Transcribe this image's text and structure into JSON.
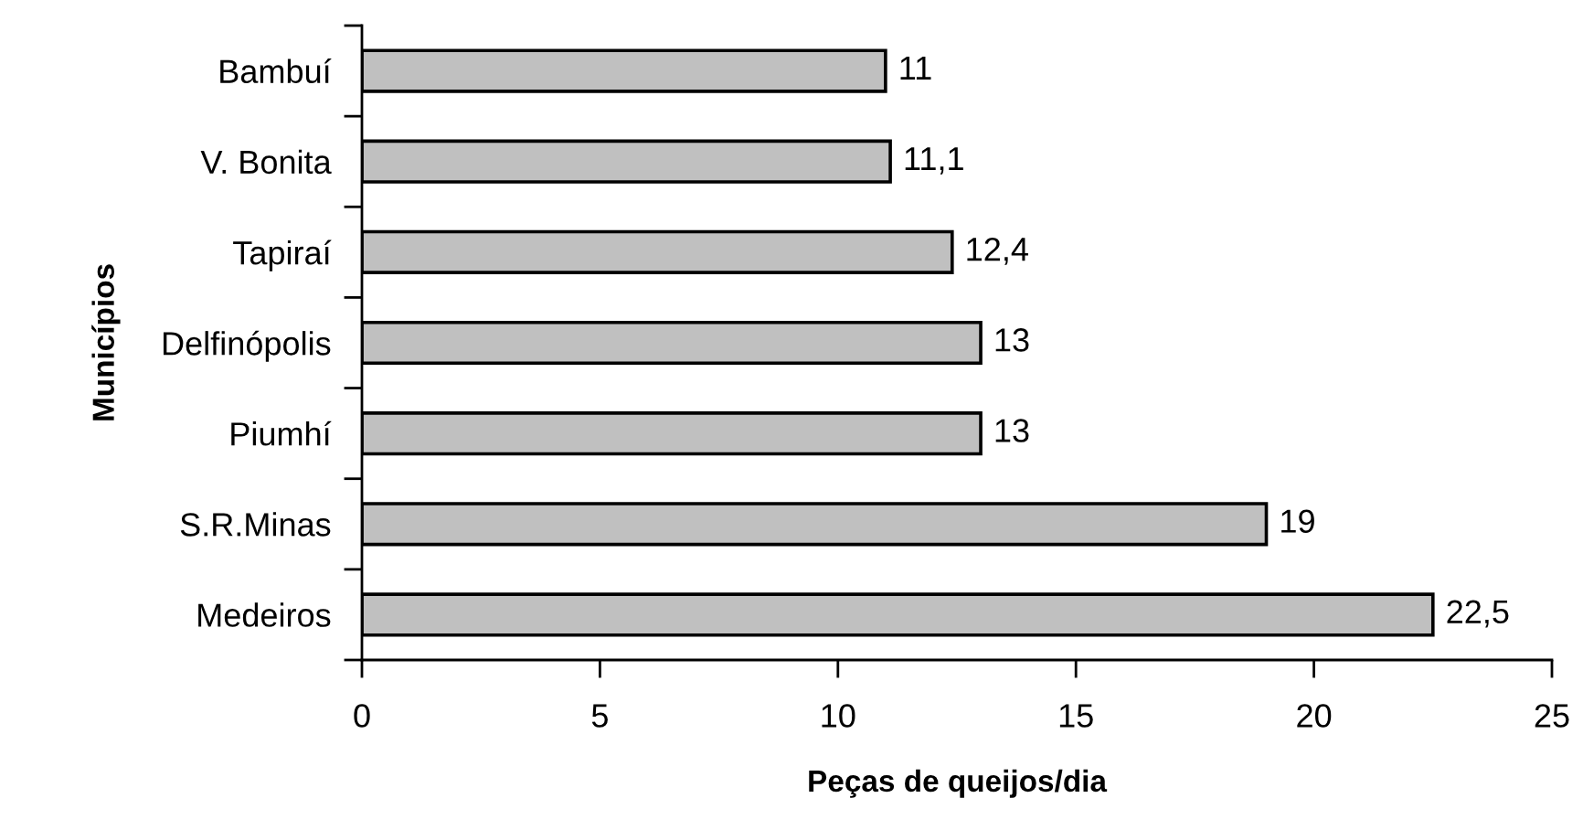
{
  "chart_data": {
    "type": "bar",
    "orientation": "horizontal",
    "xlabel": "Peças de queijos/dia",
    "ylabel": "Municípios",
    "categories": [
      "Bambuí",
      "V. Bonita",
      "Tapiraí",
      "Delfinópolis",
      "Piumhí",
      "S.R.Minas",
      "Medeiros"
    ],
    "values": [
      11,
      11.1,
      12.4,
      13,
      13,
      19,
      22.5
    ],
    "color": "#c0c0c0",
    "value_labels": [
      "11",
      "11,1",
      "12,4",
      "13",
      "13",
      "19",
      "22,5"
    ],
    "xlim": [
      0,
      25
    ],
    "xticks": [
      0,
      5,
      10,
      15,
      20,
      25
    ],
    "grid": false,
    "legend": false
  }
}
